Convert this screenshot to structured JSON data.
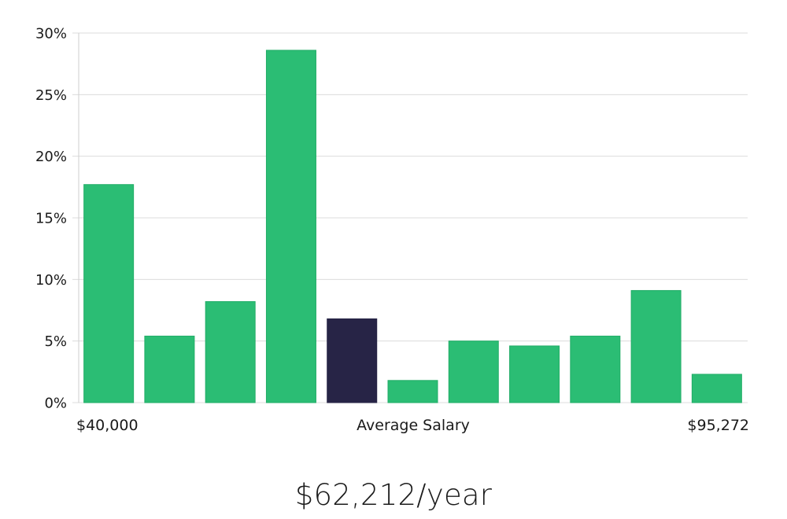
{
  "chart_data": {
    "type": "bar",
    "values": [
      17.7,
      5.4,
      8.2,
      28.6,
      6.8,
      1.8,
      5.0,
      4.6,
      5.4,
      9.1,
      2.3
    ],
    "highlight_index": 4,
    "ylim": [
      0,
      30
    ],
    "y_ticks": [
      0,
      5,
      10,
      15,
      20,
      25,
      30
    ],
    "y_tick_labels": [
      "0%",
      "5%",
      "10%",
      "15%",
      "20%",
      "25%",
      "30%"
    ],
    "x_min_label": "$40,000",
    "x_center_label": "Average Salary",
    "x_max_label": "$95,272",
    "grid": true
  },
  "colors": {
    "bar": "#2bbd74",
    "bar_stroke": "#22ad67",
    "highlight": "#272446",
    "grid": "#dcdcdc",
    "axis": "#cfcfcf"
  },
  "caption": "$62,212/year"
}
